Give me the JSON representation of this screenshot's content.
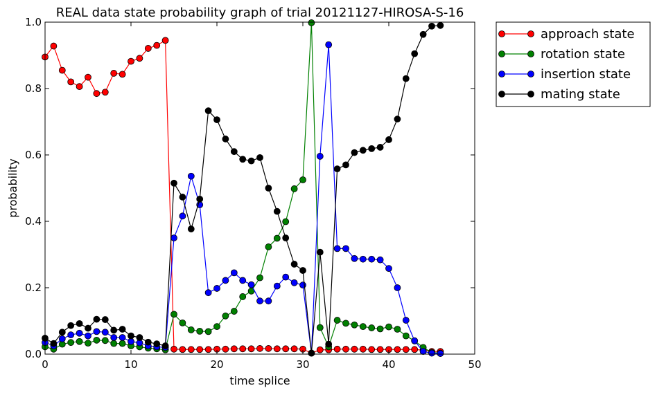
{
  "chart_data": {
    "type": "line",
    "title": "REAL data state probability graph of trial 20121127-HIROSA-S-16",
    "xlabel": "time splice",
    "ylabel": "probability",
    "xlim": [
      0,
      50
    ],
    "ylim": [
      0,
      1.0
    ],
    "xticks": [
      0,
      10,
      20,
      30,
      40,
      50
    ],
    "xtick_labels": [
      "0",
      "10",
      "20",
      "30",
      "40",
      "50"
    ],
    "yticks": [
      0,
      0.2,
      0.4,
      0.6,
      0.8,
      1.0
    ],
    "ytick_labels": [
      "0.0",
      "0.2",
      "0.4",
      "0.6",
      "0.8",
      "1.0"
    ],
    "grid": false,
    "legend_position": "outside-top-right",
    "x": [
      0,
      1,
      2,
      3,
      4,
      5,
      6,
      7,
      8,
      9,
      10,
      11,
      12,
      13,
      14,
      15,
      16,
      17,
      18,
      19,
      20,
      21,
      22,
      23,
      24,
      25,
      26,
      27,
      28,
      29,
      30,
      31,
      32,
      33,
      34,
      35,
      36,
      37,
      38,
      39,
      40,
      41,
      42,
      43,
      44,
      45,
      46
    ],
    "series": [
      {
        "name": "approach state",
        "color": "#ff0000",
        "marker": "#ff0000",
        "values": [
          0.895,
          0.928,
          0.855,
          0.82,
          0.806,
          0.834,
          0.785,
          0.789,
          0.846,
          0.843,
          0.882,
          0.891,
          0.921,
          0.93,
          0.945,
          0.015,
          0.014,
          0.014,
          0.014,
          0.014,
          0.015,
          0.015,
          0.016,
          0.016,
          0.016,
          0.017,
          0.017,
          0.016,
          0.016,
          0.016,
          0.015,
          0.003,
          0.013,
          0.013,
          0.015,
          0.015,
          0.015,
          0.015,
          0.014,
          0.014,
          0.014,
          0.014,
          0.014,
          0.014,
          0.012,
          0.008,
          0.008
        ]
      },
      {
        "name": "rotation state",
        "color": "#008000",
        "marker": "#008000",
        "values": [
          0.022,
          0.015,
          0.03,
          0.035,
          0.038,
          0.033,
          0.042,
          0.041,
          0.032,
          0.032,
          0.025,
          0.022,
          0.018,
          0.016,
          0.013,
          0.12,
          0.094,
          0.073,
          0.069,
          0.068,
          0.083,
          0.115,
          0.129,
          0.173,
          0.19,
          0.23,
          0.323,
          0.349,
          0.399,
          0.498,
          0.525,
          0.998,
          0.08,
          0.022,
          0.102,
          0.093,
          0.088,
          0.083,
          0.079,
          0.076,
          0.082,
          0.075,
          0.055,
          0.04,
          0.02,
          0.005,
          0.003
        ]
      },
      {
        "name": "insertion state",
        "color": "#0000ff",
        "marker": "#0000ff",
        "values": [
          0.035,
          0.025,
          0.046,
          0.058,
          0.063,
          0.055,
          0.068,
          0.066,
          0.05,
          0.05,
          0.038,
          0.034,
          0.025,
          0.022,
          0.02,
          0.35,
          0.416,
          0.536,
          0.45,
          0.185,
          0.198,
          0.222,
          0.245,
          0.222,
          0.209,
          0.16,
          0.16,
          0.205,
          0.232,
          0.215,
          0.208,
          0.003,
          0.596,
          0.932,
          0.318,
          0.318,
          0.288,
          0.286,
          0.286,
          0.284,
          0.258,
          0.2,
          0.102,
          0.04,
          0.008,
          0.003,
          0.002
        ]
      },
      {
        "name": "mating state",
        "color": "#000000",
        "marker": "#000000",
        "values": [
          0.048,
          0.032,
          0.066,
          0.086,
          0.092,
          0.078,
          0.105,
          0.104,
          0.072,
          0.075,
          0.055,
          0.05,
          0.036,
          0.031,
          0.025,
          0.515,
          0.473,
          0.377,
          0.467,
          0.733,
          0.706,
          0.648,
          0.61,
          0.587,
          0.582,
          0.592,
          0.5,
          0.43,
          0.35,
          0.271,
          0.252,
          0.003,
          0.307,
          0.03,
          0.558,
          0.57,
          0.607,
          0.614,
          0.619,
          0.623,
          0.646,
          0.708,
          0.83,
          0.905,
          0.963,
          0.988,
          0.99
        ]
      }
    ]
  }
}
